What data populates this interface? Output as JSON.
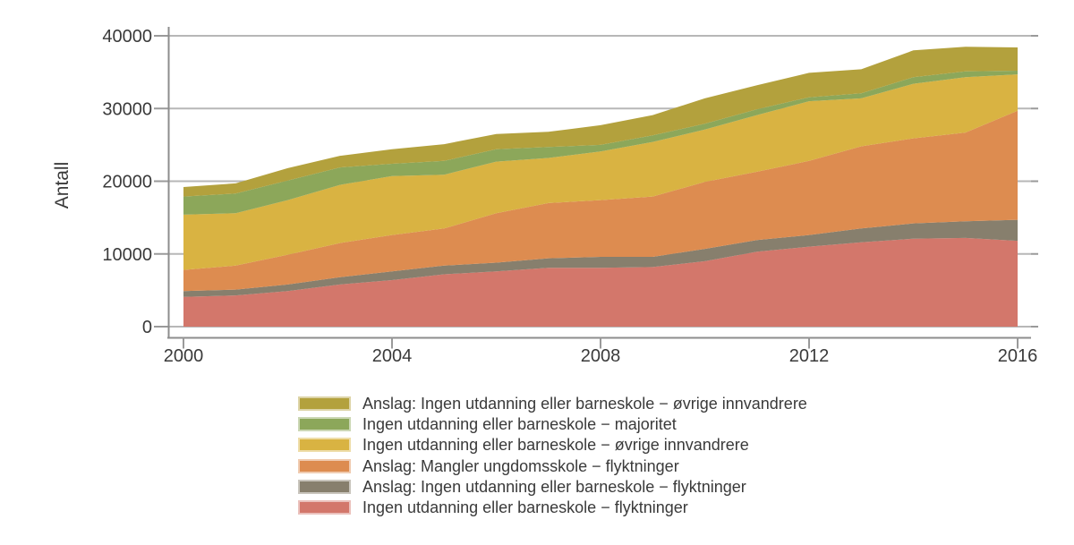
{
  "chart_data": {
    "type": "area",
    "stacked": true,
    "title": "",
    "xlabel": "",
    "ylabel": "Antall",
    "ylim": [
      0,
      40000
    ],
    "yticks": [
      0,
      10000,
      20000,
      30000,
      40000
    ],
    "xticks": [
      2000,
      2004,
      2008,
      2012,
      2016
    ],
    "grid": "horizontal-only",
    "legend_position": "bottom",
    "background": "#ffffff",
    "grid_color": "#b7b7b7",
    "spine_color": "#8d8d8d",
    "tick_color": "#9a9a9a",
    "axis_text_color": "#3a3a3a",
    "x": [
      2000,
      2001,
      2002,
      2003,
      2004,
      2005,
      2006,
      2007,
      2008,
      2009,
      2010,
      2011,
      2012,
      2013,
      2014,
      2015,
      2016
    ],
    "series": [
      {
        "name": "Ingen utdanning eller barneskole − flyktninger",
        "color": "#d3776b",
        "values": [
          4100,
          4300,
          4900,
          5800,
          6400,
          7200,
          7600,
          8100,
          8100,
          8200,
          9000,
          10300,
          11000,
          11600,
          12100,
          12200,
          11800
        ]
      },
      {
        "name": "Anslag: Ingen utdanning eller barneskole − flyktninger",
        "color": "#877f6d",
        "values": [
          800,
          800,
          900,
          1000,
          1200,
          1200,
          1200,
          1300,
          1500,
          1400,
          1700,
          1600,
          1600,
          1900,
          2100,
          2300,
          2900
        ]
      },
      {
        "name": "Anslag: Mangler ungdomsskole − flyktninger",
        "color": "#dd8c50",
        "values": [
          2900,
          3300,
          4100,
          4700,
          5000,
          5100,
          6800,
          7600,
          7800,
          8300,
          9200,
          9400,
          10200,
          11300,
          11700,
          12200,
          15000
        ]
      },
      {
        "name": "Ingen utdanning eller barneskole − øvrige innvandrere",
        "color": "#d9b342",
        "values": [
          7600,
          7200,
          7500,
          8000,
          8100,
          7400,
          7100,
          6200,
          6700,
          7500,
          7200,
          7800,
          8200,
          6600,
          7500,
          7600,
          5000
        ]
      },
      {
        "name": "Ingen utdanning eller barneskole − majoritet",
        "color": "#8ca75a",
        "values": [
          2500,
          2700,
          2700,
          2400,
          1700,
          1900,
          1700,
          1500,
          900,
          900,
          800,
          800,
          550,
          700,
          900,
          800,
          500
        ]
      },
      {
        "name": "Anslag: Ingen utdanning eller barneskole − øvrige innvandrere",
        "color": "#b3a13d",
        "values": [
          1300,
          1400,
          1700,
          1600,
          2000,
          2300,
          2100,
          2100,
          2700,
          2800,
          3500,
          3300,
          3350,
          3300,
          3700,
          3400,
          3200
        ]
      }
    ],
    "legend": [
      {
        "label": "Anslag: Ingen utdanning eller barneskole − øvrige innvandrere",
        "color": "#b3a13d"
      },
      {
        "label": "Ingen utdanning eller barneskole − majoritet",
        "color": "#8ca75a"
      },
      {
        "label": "Ingen utdanning eller barneskole − øvrige innvandrere",
        "color": "#d9b342"
      },
      {
        "label": "Anslag: Mangler ungdomsskole − flyktninger",
        "color": "#dd8c50"
      },
      {
        "label": "Anslag: Ingen utdanning eller barneskole − flyktninger",
        "color": "#877f6d"
      },
      {
        "label": "Ingen utdanning eller barneskole − flyktninger",
        "color": "#d3776b"
      }
    ]
  }
}
